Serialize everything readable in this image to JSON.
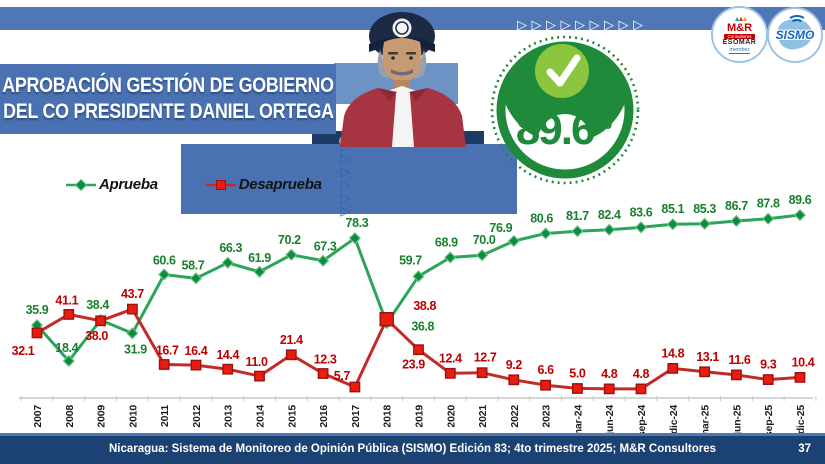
{
  "header": {
    "title_line1": "APROBACIÓN GESTIÓN DE GOBIERNO",
    "title_line2": "DEL CO PRESIDENTE DANIEL ORTEGA"
  },
  "badge": {
    "value": "89.6",
    "unit": "%"
  },
  "logos": {
    "mr": {
      "name": "M&R",
      "sub": "Consultores",
      "org": "ESOMAR",
      "member": "member"
    },
    "sismo": {
      "name": "SISMO"
    }
  },
  "legend": {
    "approve": "Aprueba",
    "disapprove": "Desaprueba"
  },
  "decor": {
    "triangle_glyph": "▷",
    "top_arrow_count": 9,
    "banner_arrow_count": 6
  },
  "colors": {
    "banner_blue": "#4a72b2",
    "bar_blue": "#4f77b5",
    "navy": "#1e3a66",
    "footer_navy": "#1c4273",
    "green": "#1e8a3a",
    "light_green": "#8cc63f",
    "red": "#ea1c0d"
  },
  "chart_data": {
    "type": "line",
    "title": "Aprobación gestión de gobierno del co presidente Daniel Ortega",
    "xlabel": "",
    "ylabel": "",
    "ylim": [
      0,
      100
    ],
    "grid": false,
    "legend_position": "top-left",
    "categories": [
      "2007",
      "2008",
      "2009",
      "2010",
      "2011",
      "2012",
      "2013",
      "2014",
      "2015",
      "2016",
      "2017",
      "2018",
      "2019",
      "2020",
      "2021",
      "2022",
      "2023",
      "mar-24",
      "jun-24",
      "sep-24",
      "dic-24",
      "mar-25",
      "jun-25",
      "sep-25",
      "dic-25"
    ],
    "series": [
      {
        "name": "Aprueba",
        "marker": "diamond",
        "line_color": "#2aa55a",
        "marker_fill": "#0c8c3f",
        "marker_stroke": "#66bd7e",
        "label_color": "#1a7f2e",
        "values": [
          35.9,
          18.4,
          38.4,
          31.9,
          60.6,
          58.7,
          66.3,
          61.9,
          70.2,
          67.3,
          78.3,
          36.8,
          59.7,
          68.9,
          70.0,
          76.9,
          80.6,
          81.7,
          82.4,
          83.6,
          85.1,
          85.3,
          86.7,
          87.8,
          89.6
        ]
      },
      {
        "name": "Desaprueba",
        "marker": "square",
        "big_marker_at": 11,
        "line_color": "#c32a2a",
        "marker_fill": "#ea1c0d",
        "marker_stroke": "#991111",
        "label_color": "#c00000",
        "values": [
          32.1,
          41.1,
          38.0,
          43.7,
          16.7,
          16.4,
          14.4,
          11.0,
          21.4,
          12.3,
          5.7,
          38.8,
          23.9,
          12.4,
          12.7,
          9.2,
          6.6,
          5.0,
          4.8,
          4.8,
          14.8,
          13.1,
          11.6,
          9.3,
          10.4
        ]
      }
    ],
    "label_offsets": {
      "Aprueba": [
        [
          0,
          -11
        ],
        [
          -2,
          -9
        ],
        [
          -3,
          -11
        ],
        [
          3,
          20
        ],
        [
          0,
          -10
        ],
        [
          -3,
          -9
        ],
        [
          3,
          -11
        ],
        [
          0,
          -10
        ],
        [
          -2,
          -11
        ],
        [
          2,
          -10
        ],
        [
          2,
          -11
        ],
        [
          36,
          7
        ],
        [
          -8,
          -12
        ],
        [
          -4,
          -11
        ],
        [
          2,
          -11
        ],
        [
          -13,
          -9
        ],
        [
          -4,
          -11
        ],
        [
          0,
          -11
        ],
        [
          0,
          -11
        ],
        [
          0,
          -11
        ],
        [
          0,
          -11
        ],
        [
          0,
          -11
        ],
        [
          0,
          -11
        ],
        [
          0,
          -11
        ],
        [
          0,
          -11
        ]
      ],
      "Desaprueba": [
        [
          -14,
          22
        ],
        [
          -2,
          -10
        ],
        [
          -4,
          19
        ],
        [
          0,
          -11
        ],
        [
          3,
          -10
        ],
        [
          0,
          -10
        ],
        [
          0,
          -10
        ],
        [
          -3,
          -10
        ],
        [
          0,
          -11
        ],
        [
          2,
          -10
        ],
        [
          -13,
          -7
        ],
        [
          38,
          -9
        ],
        [
          -5,
          19
        ],
        [
          0,
          -11
        ],
        [
          3,
          -11
        ],
        [
          0,
          -11
        ],
        [
          0,
          -11
        ],
        [
          0,
          -11
        ],
        [
          0,
          -11
        ],
        [
          0,
          -11
        ],
        [
          0,
          -11
        ],
        [
          3,
          -11
        ],
        [
          3,
          -11
        ],
        [
          0,
          -11
        ],
        [
          3,
          -11
        ]
      ]
    }
  },
  "footer": {
    "text": "Nicaragua: Sistema de Monitoreo de Opinión Pública (SISMO) Edición 83; 4to trimestre 2025; M&R Consultores",
    "page": "37"
  }
}
